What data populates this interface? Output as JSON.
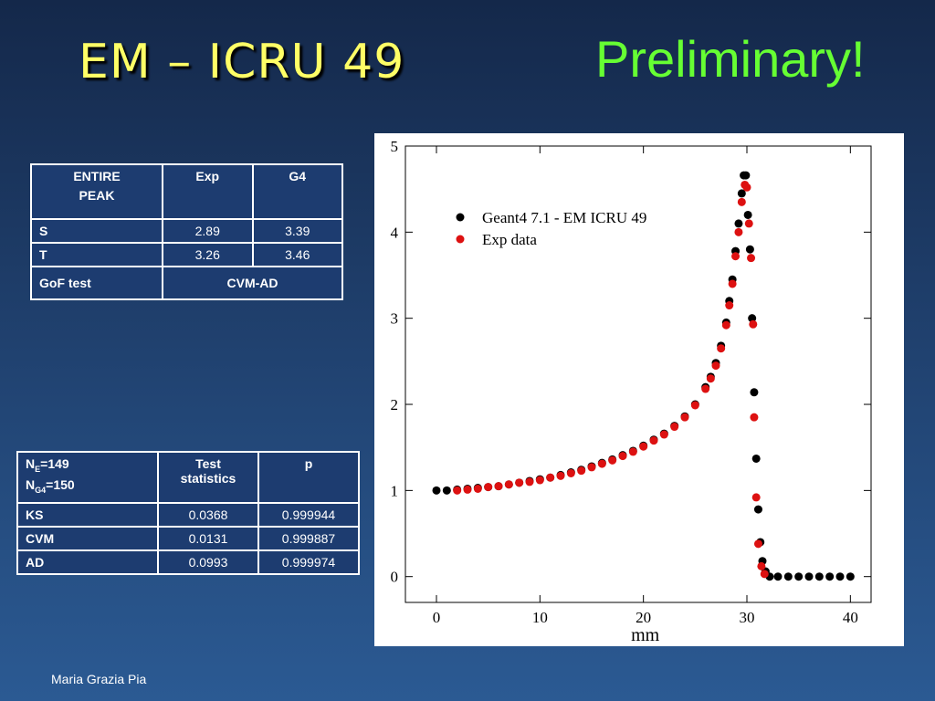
{
  "slide": {
    "title": "EM – ICRU 49",
    "subtitle": "Preliminary!",
    "footer": "Maria Grazia Pia"
  },
  "table1": {
    "header": {
      "col0_line1": "ENTIRE",
      "col0_line2": "PEAK",
      "col1": "Exp",
      "col2": "G4"
    },
    "rows": [
      {
        "label": "S",
        "exp": "2.89",
        "g4": "3.39"
      },
      {
        "label": "T",
        "exp": "3.26",
        "g4": "3.46"
      }
    ],
    "gof": {
      "label": "GoF test",
      "value": "CVM-AD"
    }
  },
  "table2": {
    "header": {
      "ne_base": "N",
      "ne_sub": "E",
      "ne_val": "=149",
      "ng4_base": "N",
      "ng4_sub": "G4",
      "ng4_val": "=150",
      "test_line1": "Test",
      "test_line2": "statistics",
      "p": "p"
    },
    "rows": [
      {
        "label": "KS",
        "stat": "0.0368",
        "p": "0.999944"
      },
      {
        "label": "CVM",
        "stat": "0.0131",
        "p": "0.999887"
      },
      {
        "label": "AD",
        "stat": "0.0993",
        "p": "0.999974"
      }
    ]
  },
  "chart_data": {
    "type": "scatter",
    "xlabel": "mm",
    "ylabel": "",
    "xlim": [
      -3,
      42
    ],
    "ylim": [
      -0.3,
      5
    ],
    "xticks": [
      0,
      10,
      20,
      30,
      40
    ],
    "yticks": [
      0,
      1,
      2,
      3,
      4,
      5
    ],
    "legend_position": "top-left",
    "series": [
      {
        "name": "Geant4 7.1 - EM ICRU 49",
        "color": "#000000",
        "points": [
          [
            0,
            1.0
          ],
          [
            1,
            1.0
          ],
          [
            2,
            1.01
          ],
          [
            3,
            1.02
          ],
          [
            4,
            1.03
          ],
          [
            5,
            1.04
          ],
          [
            6,
            1.05
          ],
          [
            7,
            1.07
          ],
          [
            8,
            1.09
          ],
          [
            9,
            1.11
          ],
          [
            10,
            1.13
          ],
          [
            11,
            1.15
          ],
          [
            12,
            1.18
          ],
          [
            13,
            1.21
          ],
          [
            14,
            1.24
          ],
          [
            15,
            1.28
          ],
          [
            16,
            1.32
          ],
          [
            17,
            1.36
          ],
          [
            18,
            1.41
          ],
          [
            19,
            1.46
          ],
          [
            20,
            1.52
          ],
          [
            21,
            1.59
          ],
          [
            22,
            1.66
          ],
          [
            23,
            1.75
          ],
          [
            24,
            1.86
          ],
          [
            25,
            2.0
          ],
          [
            26,
            2.2
          ],
          [
            26.5,
            2.32
          ],
          [
            27,
            2.48
          ],
          [
            27.5,
            2.68
          ],
          [
            28,
            2.95
          ],
          [
            28.3,
            3.2
          ],
          [
            28.6,
            3.45
          ],
          [
            28.9,
            3.78
          ],
          [
            29.2,
            4.1
          ],
          [
            29.5,
            4.45
          ],
          [
            29.7,
            4.66
          ],
          [
            29.9,
            4.66
          ],
          [
            30.1,
            4.2
          ],
          [
            30.3,
            3.8
          ],
          [
            30.5,
            3.0
          ],
          [
            30.7,
            2.14
          ],
          [
            30.9,
            1.37
          ],
          [
            31.1,
            0.78
          ],
          [
            31.3,
            0.4
          ],
          [
            31.5,
            0.18
          ],
          [
            31.8,
            0.06
          ],
          [
            32.2,
            0.0
          ],
          [
            33,
            0.0
          ],
          [
            34,
            0.0
          ],
          [
            35,
            0.0
          ],
          [
            36,
            0.0
          ],
          [
            37,
            0.0
          ],
          [
            38,
            0.0
          ],
          [
            39,
            0.0
          ],
          [
            40,
            0.0
          ]
        ]
      },
      {
        "name": "Exp data",
        "color": "#dd1111",
        "points": [
          [
            2,
            1.0
          ],
          [
            3,
            1.01
          ],
          [
            4,
            1.02
          ],
          [
            5,
            1.04
          ],
          [
            6,
            1.05
          ],
          [
            7,
            1.07
          ],
          [
            8,
            1.09
          ],
          [
            9,
            1.1
          ],
          [
            10,
            1.12
          ],
          [
            11,
            1.15
          ],
          [
            12,
            1.17
          ],
          [
            13,
            1.2
          ],
          [
            14,
            1.23
          ],
          [
            15,
            1.27
          ],
          [
            16,
            1.31
          ],
          [
            17,
            1.35
          ],
          [
            18,
            1.4
          ],
          [
            19,
            1.45
          ],
          [
            20,
            1.51
          ],
          [
            21,
            1.58
          ],
          [
            22,
            1.65
          ],
          [
            23,
            1.74
          ],
          [
            24,
            1.85
          ],
          [
            25,
            1.99
          ],
          [
            26,
            2.18
          ],
          [
            26.5,
            2.3
          ],
          [
            27,
            2.45
          ],
          [
            27.5,
            2.65
          ],
          [
            28,
            2.92
          ],
          [
            28.3,
            3.15
          ],
          [
            28.6,
            3.4
          ],
          [
            28.9,
            3.72
          ],
          [
            29.2,
            4.0
          ],
          [
            29.5,
            4.35
          ],
          [
            29.8,
            4.55
          ],
          [
            30.0,
            4.52
          ],
          [
            30.2,
            4.1
          ],
          [
            30.4,
            3.7
          ],
          [
            30.6,
            2.93
          ],
          [
            30.7,
            1.85
          ],
          [
            30.9,
            0.92
          ],
          [
            31.1,
            0.38
          ],
          [
            31.4,
            0.12
          ],
          [
            31.7,
            0.03
          ]
        ]
      }
    ]
  }
}
